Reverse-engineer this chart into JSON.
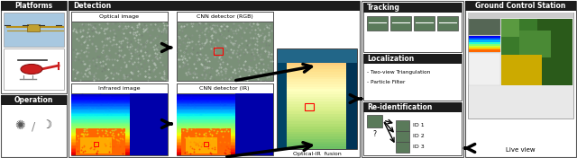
{
  "bg_color": "#ffffff",
  "fig_width": 6.4,
  "fig_height": 1.76,
  "platforms_label": "Platforms",
  "operation_label": "Operation",
  "detection_label": "Detection",
  "tracking_label": "Tracking",
  "localization_label": "Localization",
  "reid_label": "Re-identification",
  "gcs_label": "Ground Control Station",
  "liveview_label": "Live view",
  "optical_label": "Optical image",
  "cnn_rgb_label": "CNN detector (RGB)",
  "ir_label": "Infrared image",
  "cnn_ir_label": "CNN detector (IR)",
  "fusion_label": "Optical-IR  fusion",
  "loc_line1": "- Two-view Triangulation",
  "loc_line2": "- Particle Filter",
  "header_bg": "#1c1c1c",
  "header_color": "#ffffff",
  "box_edge": "#555555",
  "optical_bg": "#8a9a88",
  "ir_colors": [
    "#0000aa",
    "#0055cc",
    "#0088ff",
    "#00ccff",
    "#00ffcc",
    "#88ff00",
    "#ffff00",
    "#ffaa00",
    "#ff5500",
    "#ff0000"
  ],
  "fusion_center": "#cccc44",
  "fusion_edge": "#004477"
}
